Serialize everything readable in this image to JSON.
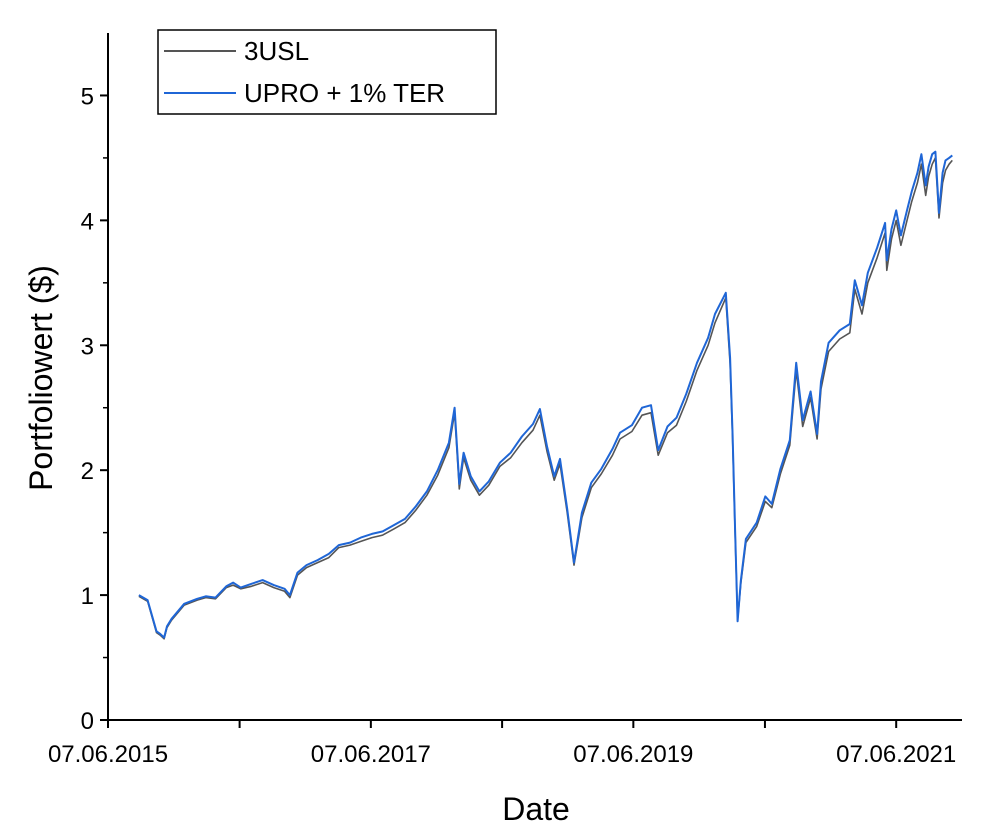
{
  "chart_data": {
    "type": "line",
    "xlabel": "Date",
    "ylabel": "Portfoliowert ($)",
    "xlim": [
      "2015-06-07",
      "2021-12-07"
    ],
    "ylim": [
      0,
      5.5
    ],
    "x_tick_labels": [
      "07.06.2015",
      "07.06.2017",
      "07.06.2019",
      "07.06.2021"
    ],
    "x_tick_dates": [
      "2015-06-07",
      "2016-06-07",
      "2017-06-07",
      "2018-06-07",
      "2019-06-07",
      "2020-06-07",
      "2021-06-07"
    ],
    "y_ticks": [
      0,
      1,
      2,
      3,
      4,
      5
    ],
    "legend_position": "top-left",
    "grid": false,
    "series": [
      {
        "name": "3USL",
        "color": "#555555",
        "x": [
          "2015-09-01",
          "2015-09-25",
          "2015-10-20",
          "2015-10-30",
          "2015-11-10",
          "2015-11-18",
          "2015-12-01",
          "2016-01-05",
          "2016-02-10",
          "2016-03-05",
          "2016-04-01",
          "2016-05-01",
          "2016-05-20",
          "2016-06-10",
          "2016-07-10",
          "2016-08-10",
          "2016-09-10",
          "2016-10-10",
          "2016-10-25",
          "2016-11-15",
          "2016-12-10",
          "2017-01-10",
          "2017-02-10",
          "2017-03-10",
          "2017-04-10",
          "2017-05-10",
          "2017-06-10",
          "2017-07-10",
          "2017-08-10",
          "2017-09-10",
          "2017-10-10",
          "2017-11-10",
          "2017-12-10",
          "2018-01-10",
          "2018-01-26",
          "2018-02-08",
          "2018-02-20",
          "2018-03-12",
          "2018-04-05",
          "2018-05-01",
          "2018-06-01",
          "2018-07-01",
          "2018-08-01",
          "2018-09-01",
          "2018-09-20",
          "2018-10-10",
          "2018-10-30",
          "2018-11-15",
          "2018-12-05",
          "2018-12-24",
          "2019-01-15",
          "2019-02-10",
          "2019-03-10",
          "2019-04-10",
          "2019-05-01",
          "2019-06-03",
          "2019-07-01",
          "2019-07-26",
          "2019-08-15",
          "2019-09-10",
          "2019-10-05",
          "2019-11-01",
          "2019-12-01",
          "2020-01-01",
          "2020-01-20",
          "2020-02-19",
          "2020-03-02",
          "2020-03-09",
          "2020-03-16",
          "2020-03-23",
          "2020-04-01",
          "2020-04-15",
          "2020-05-15",
          "2020-06-08",
          "2020-06-26",
          "2020-07-20",
          "2020-08-15",
          "2020-09-02",
          "2020-09-20",
          "2020-10-12",
          "2020-10-30",
          "2020-11-10",
          "2020-12-01",
          "2021-01-01",
          "2021-01-29",
          "2021-02-12",
          "2021-03-04",
          "2021-03-20",
          "2021-04-15",
          "2021-05-07",
          "2021-05-12",
          "2021-05-25",
          "2021-06-07"
        ],
        "values": [
          0.99,
          0.95,
          0.7,
          0.68,
          0.65,
          0.74,
          0.8,
          0.92,
          0.96,
          0.98,
          0.97,
          1.06,
          1.08,
          1.05,
          1.07,
          1.1,
          1.06,
          1.03,
          0.98,
          1.16,
          1.22,
          1.26,
          1.3,
          1.38,
          1.4,
          1.43,
          1.46,
          1.48,
          1.53,
          1.58,
          1.68,
          1.8,
          1.96,
          2.18,
          2.46,
          1.85,
          2.1,
          1.92,
          1.8,
          1.88,
          2.03,
          2.1,
          2.22,
          2.32,
          2.44,
          2.15,
          1.92,
          2.05,
          1.66,
          1.24,
          1.62,
          1.86,
          1.97,
          2.12,
          2.25,
          2.31,
          2.44,
          2.46,
          2.12,
          2.3,
          2.36,
          2.55,
          2.8,
          3.0,
          3.18,
          3.38,
          2.85,
          2.25,
          1.5,
          0.8,
          1.1,
          1.42,
          1.55,
          1.75,
          1.7,
          1.97,
          2.2,
          2.8,
          2.35,
          2.58,
          2.25,
          2.65,
          2.95,
          3.05,
          3.1,
          3.45,
          3.25,
          3.5,
          3.7,
          3.9,
          3.6,
          3.85,
          4.0
        ]
      },
      {
        "name": "UPRO + 1% TER",
        "color": "#1f66d6",
        "x": [
          "2015-09-01",
          "2015-09-25",
          "2015-10-20",
          "2015-10-30",
          "2015-11-10",
          "2015-11-18",
          "2015-12-01",
          "2016-01-05",
          "2016-02-10",
          "2016-03-05",
          "2016-04-01",
          "2016-05-01",
          "2016-05-20",
          "2016-06-10",
          "2016-07-10",
          "2016-08-10",
          "2016-09-10",
          "2016-10-10",
          "2016-10-25",
          "2016-11-15",
          "2016-12-10",
          "2017-01-10",
          "2017-02-10",
          "2017-03-10",
          "2017-04-10",
          "2017-05-10",
          "2017-06-10",
          "2017-07-10",
          "2017-08-10",
          "2017-09-10",
          "2017-10-10",
          "2017-11-10",
          "2017-12-10",
          "2018-01-10",
          "2018-01-26",
          "2018-02-08",
          "2018-02-20",
          "2018-03-12",
          "2018-04-05",
          "2018-05-01",
          "2018-06-01",
          "2018-07-01",
          "2018-08-01",
          "2018-09-01",
          "2018-09-20",
          "2018-10-10",
          "2018-10-30",
          "2018-11-15",
          "2018-12-05",
          "2018-12-24",
          "2019-01-15",
          "2019-02-10",
          "2019-03-10",
          "2019-04-10",
          "2019-05-01",
          "2019-06-03",
          "2019-07-01",
          "2019-07-26",
          "2019-08-15",
          "2019-09-10",
          "2019-10-05",
          "2019-11-01",
          "2019-12-01",
          "2020-01-01",
          "2020-01-20",
          "2020-02-19",
          "2020-03-02",
          "2020-03-09",
          "2020-03-16",
          "2020-03-23",
          "2020-04-01",
          "2020-04-15",
          "2020-05-15",
          "2020-06-08",
          "2020-06-26",
          "2020-07-20",
          "2020-08-15",
          "2020-09-02",
          "2020-09-20",
          "2020-10-12",
          "2020-10-30",
          "2020-11-10",
          "2020-12-01",
          "2021-01-01",
          "2021-01-29",
          "2021-02-12",
          "2021-03-04",
          "2021-03-20",
          "2021-04-15",
          "2021-05-07",
          "2021-05-12",
          "2021-05-25",
          "2021-06-07"
        ],
        "values": [
          1.0,
          0.96,
          0.71,
          0.69,
          0.66,
          0.75,
          0.81,
          0.93,
          0.97,
          0.99,
          0.98,
          1.07,
          1.1,
          1.06,
          1.09,
          1.12,
          1.08,
          1.05,
          1.0,
          1.18,
          1.24,
          1.28,
          1.33,
          1.4,
          1.42,
          1.46,
          1.49,
          1.51,
          1.56,
          1.61,
          1.71,
          1.83,
          2.0,
          2.22,
          2.5,
          1.89,
          2.14,
          1.95,
          1.83,
          1.91,
          2.06,
          2.14,
          2.27,
          2.37,
          2.49,
          2.19,
          1.95,
          2.09,
          1.69,
          1.26,
          1.66,
          1.9,
          2.01,
          2.17,
          2.3,
          2.36,
          2.5,
          2.52,
          2.16,
          2.35,
          2.42,
          2.61,
          2.86,
          3.06,
          3.25,
          3.42,
          2.9,
          2.28,
          1.52,
          0.79,
          1.12,
          1.45,
          1.58,
          1.79,
          1.73,
          2.01,
          2.24,
          2.86,
          2.4,
          2.63,
          2.29,
          2.71,
          3.02,
          3.12,
          3.17,
          3.52,
          3.32,
          3.58,
          3.78,
          3.98,
          3.68,
          3.93,
          4.08
        ]
      }
    ],
    "series_tail": {
      "x": [
        "2021-06-20",
        "2021-07-07",
        "2021-07-20",
        "2021-08-05",
        "2021-08-16",
        "2021-08-28",
        "2021-09-05",
        "2021-09-15",
        "2021-09-24",
        "2021-10-04",
        "2021-10-14",
        "2021-10-22",
        "2021-11-01",
        "2021-11-10"
      ],
      "values_3usl": [
        3.8,
        4.0,
        4.15,
        4.3,
        4.45,
        4.2,
        4.35,
        4.45,
        4.5,
        4.02,
        4.3,
        4.4,
        4.45,
        4.48
      ],
      "values_upro": [
        3.88,
        4.08,
        4.23,
        4.38,
        4.53,
        4.28,
        4.43,
        4.53,
        4.55,
        4.06,
        4.38,
        4.48,
        4.5,
        4.52
      ]
    }
  }
}
